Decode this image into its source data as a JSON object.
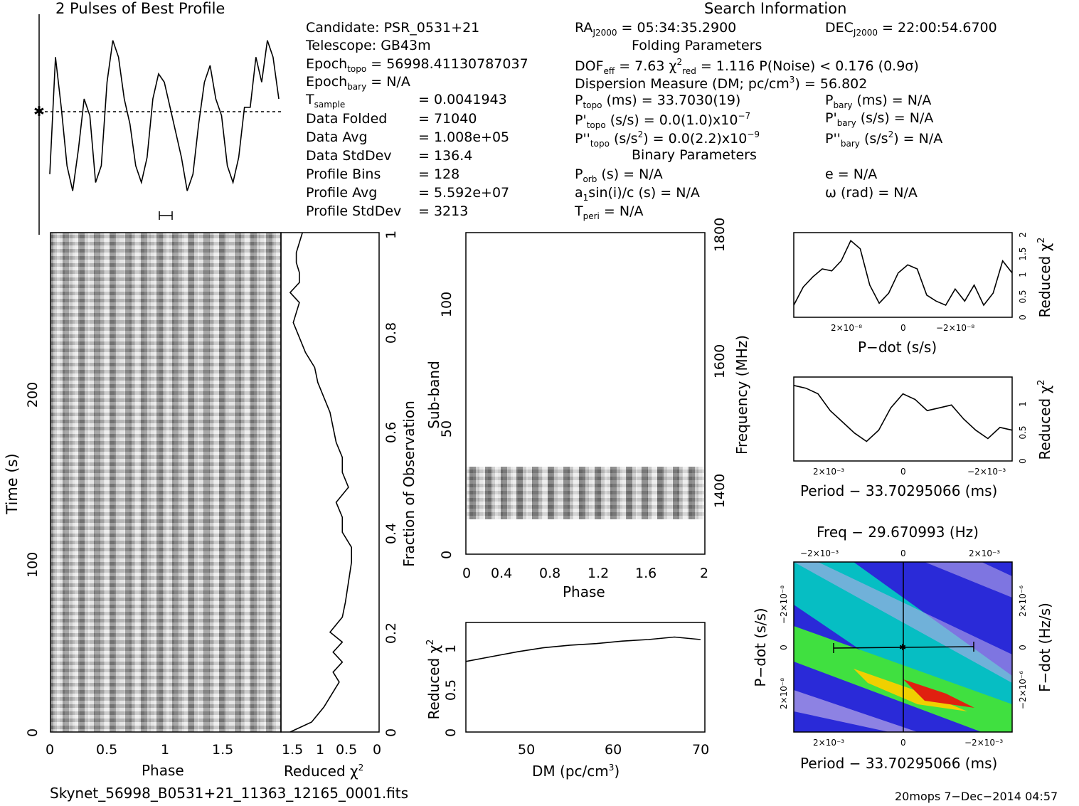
{
  "header": {
    "profile_title": "2 Pulses of Best Profile",
    "search_title": "Search Information",
    "folding_title": "Folding Parameters",
    "binary_title": "Binary Parameters"
  },
  "info": {
    "candidate": "Candidate:  PSR_0531+21",
    "telescope": "Telescope:  GB43m",
    "epoch_topo_label": "Epoch",
    "epoch_topo_sub": "topo",
    "epoch_topo_val": " = 56998.41130787037",
    "epoch_bary_label": "Epoch",
    "epoch_bary_sub": "bary",
    "epoch_bary_val": " = N/A",
    "tsample_label": "T",
    "tsample_sub": "sample",
    "tsample_val": "=   0.0041943",
    "data_folded": "Data Folded",
    "data_folded_val": "=   71040",
    "data_avg": "Data Avg",
    "data_avg_val": "=   1.008e+05",
    "data_std": "Data StdDev",
    "data_std_val": "=   136.4",
    "prof_bins": "Profile Bins",
    "prof_bins_val": "=   128",
    "prof_avg": "Profile Avg",
    "prof_avg_val": "=   5.592e+07",
    "prof_std": "Profile StdDev",
    "prof_std_val": "=   3213",
    "ra": "RA",
    "ra_sub": "J2000",
    "ra_val": " = 05:34:35.2900",
    "dec": "DEC",
    "dec_sub": "J2000",
    "dec_val": " = 22:00:54.6700",
    "dof": "DOF",
    "dof_sub": "eff",
    "dof_val": " = 7.63  χ",
    "chi_sup": "2",
    "chi_sub": "red",
    "chi_val": " = 1.116   P(Noise) < 0.176   (0.9σ)",
    "dm": "Dispersion Measure (DM; pc/cm",
    "dm_sup": "3",
    "dm_val": ") = 56.802",
    "ptopo": "P",
    "ptopo_sub": "topo",
    "ptopo_val": " (ms) =  33.7030(19)",
    "pbary": "P",
    "pbary_sub": "bary",
    "pbary_val": " (ms) = N/A",
    "pdtopo": "P'",
    "pdtopo_sub": "topo",
    "pdtopo_val": " (s/s) = 0.0(1.0)x10",
    "pdtopo_exp": "−7",
    "pdbary": "P'",
    "pdbary_sub": "bary",
    "pdbary_val": " (s/s) = N/A",
    "pddtopo": "P''",
    "pddtopo_sub": "topo",
    "pddtopo_val": " (s/s",
    "pddtopo_sup": "2",
    "pddtopo_val2": ") = 0.0(2.2)x10",
    "pddtopo_exp": "−9",
    "pddbary": "P''",
    "pddbary_sub": "bary",
    "pddbary_val": " (s/s",
    "pddbary_sup": "2",
    "pddbary_val2": ") = N/A",
    "porb": "P",
    "porb_sub": "orb",
    "porb_val": " (s) = N/A",
    "ecc": "e = N/A",
    "asini": "a",
    "asini_sub": "1",
    "asini_val": "sin(i)/c (s) = N/A",
    "omega": "ω (rad) = N/A",
    "tperi": "T",
    "tperi_sub": "peri",
    "tperi_val": " = N/A"
  },
  "labels": {
    "time_axis": "Time (s)",
    "phase_axis": "Phase",
    "reduced_chi": "Reduced χ",
    "chi_sup": "2",
    "fraction_axis": "Fraction of Observation",
    "subband_axis": "Sub-band",
    "frequency_axis": "Frequency (MHz)",
    "phase_axis2": "Phase",
    "dm_axis": "DM (pc/cm",
    "dm_sup": "3",
    "dm_close": ")",
    "pdot_axis": "P−dot (s/s)",
    "period_axis": "Period − 33.70295066 (ms)",
    "period_axis2": "Period − 33.70295066 (ms)",
    "freq_title": "Freq − 29.670993 (Hz)",
    "pdot_axis2": "P−dot (s/s)",
    "fdot_axis": "F−dot (Hz/s)",
    "filename": "Skynet_56998_B0531+21_11363_12165_0001.fits",
    "footer": "20mops   7−Dec−2014 04:57"
  },
  "colors": {
    "ink": "#000000",
    "map_low": "#2a2ad8",
    "map_mid": "#00d8c0",
    "map_green": "#40e040",
    "map_high": "#e02010"
  },
  "chart_data": [
    {
      "type": "line",
      "title": "2 Pulses of Best Profile",
      "x": [
        0,
        0.05,
        0.1,
        0.15,
        0.2,
        0.25,
        0.3,
        0.35,
        0.4,
        0.45,
        0.5,
        0.55,
        0.6,
        0.65,
        0.7,
        0.75,
        0.8,
        0.85,
        0.9,
        0.95,
        1.0,
        1.05,
        1.1,
        1.15,
        1.2,
        1.25,
        1.3,
        1.35,
        1.4,
        1.45,
        1.5,
        1.55,
        1.6,
        1.65,
        1.7,
        1.75,
        1.8,
        1.85,
        1.9,
        1.95,
        2.0
      ],
      "values": [
        0.15,
        0.85,
        0.55,
        0.2,
        0.05,
        0.3,
        0.6,
        0.5,
        0.1,
        0.2,
        0.7,
        0.95,
        0.85,
        0.6,
        0.45,
        0.2,
        0.1,
        0.25,
        0.6,
        0.75,
        0.7,
        0.55,
        0.4,
        0.25,
        0.05,
        0.15,
        0.45,
        0.7,
        0.8,
        0.6,
        0.5,
        0.2,
        0.1,
        0.25,
        0.55,
        0.55,
        0.85,
        0.7,
        0.95,
        0.85,
        0.6
      ],
      "ylim": [
        0,
        1
      ]
    },
    {
      "type": "heatmap",
      "xlabel": "Phase",
      "ylabel": "Time (s)",
      "xlim": [
        0,
        2
      ],
      "ylim": [
        0,
        290
      ],
      "x_ticks": [
        "0",
        "0.5",
        "1",
        "1.5"
      ],
      "y_ticks": [
        "0",
        "100",
        "200"
      ]
    },
    {
      "type": "line",
      "xlabel": "Reduced χ2",
      "ylabel": "Fraction of Observation",
      "x_ticks": [
        "1.5",
        "1",
        "0.5",
        "0"
      ],
      "y_ticks": [
        "0",
        "0.2",
        "0.4",
        "0.6",
        "0.8",
        "1"
      ],
      "frac": [
        0,
        0.02,
        0.05,
        0.08,
        0.1,
        0.12,
        0.14,
        0.16,
        0.18,
        0.2,
        0.23,
        0.26,
        0.3,
        0.34,
        0.37,
        0.4,
        0.43,
        0.46,
        0.49,
        0.52,
        0.55,
        0.58,
        0.61,
        0.64,
        0.67,
        0.7,
        0.73,
        0.76,
        0.79,
        0.82,
        0.84,
        0.86,
        0.88,
        0.9,
        0.92,
        0.94,
        0.96,
        0.98,
        1.0
      ],
      "chi": [
        1.45,
        1.1,
        0.9,
        0.75,
        0.65,
        0.75,
        0.6,
        0.75,
        0.6,
        0.8,
        0.6,
        0.55,
        0.5,
        0.45,
        0.45,
        0.6,
        0.6,
        0.7,
        0.5,
        0.6,
        0.6,
        0.7,
        0.75,
        0.8,
        0.9,
        1.0,
        1.05,
        1.2,
        1.3,
        1.4,
        1.35,
        1.3,
        1.45,
        1.3,
        1.3,
        1.35,
        1.35,
        1.3,
        1.25
      ],
      "xlim": [
        1.6,
        0
      ]
    },
    {
      "type": "heatmap",
      "xlabel": "Phase",
      "ylabel": "Sub-band",
      "y2label": "Frequency (MHz)",
      "xlim": [
        0,
        2
      ],
      "ylim": [
        0,
        128
      ],
      "x_ticks": [
        "0",
        "0.4",
        "0.8",
        "1.2",
        "1.6",
        "2"
      ],
      "y_ticks": [
        "0",
        "50",
        "100"
      ],
      "y2_ticks": [
        "1400",
        "1600",
        "1800"
      ],
      "filled_subbands": [
        14,
        35
      ]
    },
    {
      "type": "line",
      "xlabel": "DM (pc/cm3)",
      "ylabel": "Reduced χ2",
      "x": [
        43,
        46,
        49,
        52,
        55,
        58,
        61,
        64,
        67,
        70
      ],
      "values": [
        0.87,
        0.93,
        0.99,
        1.04,
        1.07,
        1.09,
        1.12,
        1.14,
        1.17,
        1.14
      ],
      "xlim": [
        43,
        70.5
      ],
      "ylim": [
        0,
        1.35
      ],
      "x_ticks": [
        "50",
        "60",
        "70"
      ],
      "y_ticks": [
        "0",
        "0.5",
        "1"
      ]
    },
    {
      "type": "line",
      "xlabel": "P−dot (s/s)",
      "ylabel": "Reduced χ2",
      "x_ticks": [
        "2×10⁻⁸",
        "0",
        "−2×10⁻⁸"
      ],
      "y_ticks": [
        "0",
        "0.5",
        "1",
        "1.5",
        "2"
      ],
      "values": [
        0.3,
        0.75,
        1.0,
        1.2,
        1.15,
        1.4,
        1.9,
        1.7,
        0.8,
        0.35,
        0.6,
        1.1,
        1.3,
        1.2,
        0.55,
        0.4,
        0.3,
        0.7,
        0.4,
        0.8,
        0.3,
        0.6,
        1.4,
        1.1
      ],
      "ylim": [
        0,
        2.1
      ]
    },
    {
      "type": "line",
      "xlabel": "Period − 33.70295066 (ms)",
      "ylabel": "Reduced χ2",
      "x_ticks": [
        "2×10⁻³",
        "0",
        "−2×10⁻³"
      ],
      "y_ticks": [
        "0",
        "0.5",
        "1"
      ],
      "values": [
        1.35,
        1.3,
        1.2,
        0.9,
        0.7,
        0.5,
        0.35,
        0.55,
        0.95,
        1.2,
        1.1,
        0.9,
        0.95,
        1.0,
        0.75,
        0.55,
        0.4,
        0.6,
        0.55
      ],
      "ylim": [
        0,
        1.5
      ]
    },
    {
      "type": "heatmap",
      "title": "Freq − 29.670993 (Hz)",
      "xlabel": "Period − 33.70295066 (ms)",
      "ylabel": "P−dot (s/s)",
      "y2label": "F−dot (Hz/s)",
      "x_ticks": [
        "2×10⁻³",
        "0",
        "−2×10⁻³"
      ],
      "top_ticks": [
        "−2×10⁻³",
        "0",
        "2×10⁻³"
      ],
      "y_ticks": [
        "2×10⁻⁸",
        "0",
        "−2×10⁻⁸"
      ],
      "y2_ticks": [
        "−2×10⁻⁶",
        "0",
        "2×10⁻⁶"
      ]
    }
  ]
}
